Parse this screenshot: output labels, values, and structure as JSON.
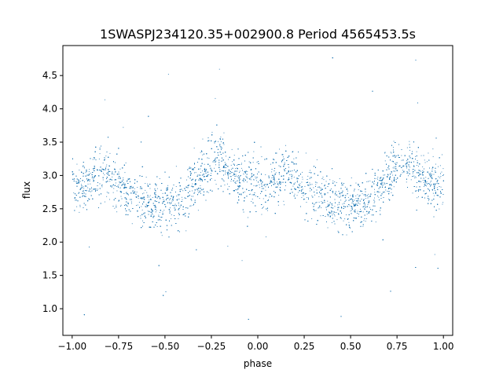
{
  "chart_data": {
    "type": "scatter",
    "title": "1SWASPJ234120.35+002900.8 Period 4565453.5s",
    "xlabel": "phase",
    "ylabel": "flux",
    "xlim": [
      -1.05,
      1.05
    ],
    "ylim": [
      0.6,
      4.95
    ],
    "xticks": [
      -1.0,
      -0.75,
      -0.5,
      -0.25,
      0.0,
      0.25,
      0.5,
      0.75,
      1.0
    ],
    "xtick_labels": [
      "−1.00",
      "−0.75",
      "−0.50",
      "−0.25",
      "0.00",
      "0.25",
      "0.50",
      "0.75",
      "1.00"
    ],
    "yticks": [
      1.0,
      1.5,
      2.0,
      2.5,
      3.0,
      3.5,
      4.0,
      4.5
    ],
    "ytick_labels": [
      "1.0",
      "1.5",
      "2.0",
      "2.5",
      "3.0",
      "3.5",
      "4.0",
      "4.5"
    ],
    "grid": false,
    "marker_color": "#1f77b4",
    "series": [
      {
        "x": [
          -1.0,
          -0.95,
          -0.9,
          -0.85,
          -0.8,
          -0.75,
          -0.7,
          -0.65,
          -0.6,
          -0.55,
          -0.5,
          -0.45,
          -0.4,
          -0.35,
          -0.3,
          -0.25,
          -0.2,
          -0.15,
          -0.1,
          -0.05,
          0.0,
          0.05,
          0.1,
          0.15,
          0.2,
          0.25,
          0.3,
          0.35,
          0.4,
          0.45,
          0.5,
          0.55,
          0.6,
          0.65,
          0.7,
          0.75,
          0.8,
          0.85,
          0.9,
          0.95,
          1.0
        ],
        "y": [
          2.9,
          2.85,
          2.95,
          3.05,
          3.0,
          2.85,
          2.75,
          2.7,
          2.6,
          2.55,
          2.55,
          2.6,
          2.65,
          2.8,
          3.0,
          3.2,
          3.25,
          3.05,
          2.95,
          2.9,
          2.9,
          2.85,
          2.95,
          3.05,
          3.0,
          2.85,
          2.75,
          2.7,
          2.6,
          2.55,
          2.55,
          2.6,
          2.65,
          2.8,
          3.0,
          3.2,
          3.25,
          3.05,
          2.95,
          2.9,
          2.9
        ]
      }
    ]
  }
}
